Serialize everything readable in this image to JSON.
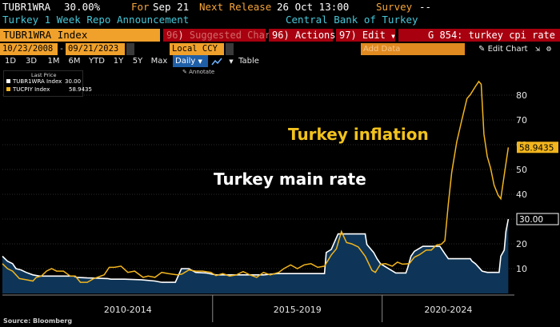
{
  "header": {
    "ticker": "TUBR1WRA",
    "value": "30.00%",
    "for_label": "For",
    "for_date": "Sep 21",
    "next_release_label": "Next Release",
    "next_release": "26 Oct 13:00",
    "survey_label": "Survey",
    "survey_value": "--",
    "description": "Turkey 1 Week Repo Announcement",
    "source_name": "Central Bank of Turkey"
  },
  "toolbar": {
    "security": "TUBR1WRA Index",
    "suggested_num": "96",
    "suggested": "Suggested Charts",
    "actions_num": "96)",
    "actions": "Actions",
    "edit_num": "97)",
    "edit": "Edit",
    "search": "G 854: turkey cpi rate"
  },
  "controls": {
    "start_date": "10/23/2008",
    "end_date": "09/21/2023",
    "currency": "Local CCY",
    "add_data": "Add Data",
    "edit_chart": "Edit Chart",
    "periods": [
      "1D",
      "3D",
      "1M",
      "6M",
      "YTD",
      "1Y",
      "5Y",
      "Max"
    ],
    "frequency": "Daily",
    "table": "Table",
    "annotate": "Annotate"
  },
  "legend": {
    "header": "Last Price",
    "items": [
      {
        "name": "TUBR1WRA Index",
        "value": "30.00",
        "color": "#ffffff"
      },
      {
        "name": "TUCPIY Index",
        "value": "58.9435",
        "color": "#f2b51d"
      }
    ]
  },
  "chart_data": {
    "type": "line",
    "x_unit": "year",
    "xlim": [
      2008.8,
      2023.9
    ],
    "ylim": [
      0,
      90
    ],
    "y_ticks": [
      10,
      20,
      30,
      40,
      50,
      60,
      70,
      80
    ],
    "x_groups": [
      {
        "label": "2010-2014",
        "from": 2010,
        "to": 2015
      },
      {
        "label": "2015-2019",
        "from": 2015,
        "to": 2020
      },
      {
        "label": "2020-2024",
        "from": 2020,
        "to": 2024
      }
    ],
    "annotations": [
      {
        "text": "Turkey inflation",
        "color": "#f2c21d"
      },
      {
        "text": "Turkey main rate",
        "color": "#ffffff"
      }
    ],
    "last_labels": [
      {
        "text": "58.9435",
        "value": 58.9435,
        "style": "yellow"
      },
      {
        "text": "30.00",
        "value": 30.0,
        "style": "black"
      }
    ],
    "series": [
      {
        "name": "TUBR1WRA Index",
        "color": "#ffffff",
        "fill": "#0e3557",
        "points": [
          [
            2008.8,
            15.0
          ],
          [
            2008.95,
            13.0
          ],
          [
            2009.1,
            12.0
          ],
          [
            2009.2,
            10.0
          ],
          [
            2009.35,
            9.5
          ],
          [
            2009.5,
            8.5
          ],
          [
            2009.7,
            7.5
          ],
          [
            2009.9,
            7.0
          ],
          [
            2010.3,
            7.0
          ],
          [
            2010.4,
            7.0
          ],
          [
            2010.5,
            7.0
          ],
          [
            2010.9,
            7.0
          ],
          [
            2011.0,
            6.5
          ],
          [
            2011.3,
            6.25
          ],
          [
            2011.9,
            6.0
          ],
          [
            2012.0,
            5.75
          ],
          [
            2012.4,
            5.75
          ],
          [
            2012.9,
            5.5
          ],
          [
            2013.3,
            5.0
          ],
          [
            2013.5,
            4.5
          ],
          [
            2013.9,
            4.5
          ],
          [
            2014.08,
            10.0
          ],
          [
            2014.3,
            10.0
          ],
          [
            2014.5,
            8.5
          ],
          [
            2014.8,
            8.25
          ],
          [
            2015.1,
            7.5
          ],
          [
            2015.9,
            7.5
          ],
          [
            2016.1,
            7.5
          ],
          [
            2016.5,
            7.5
          ],
          [
            2016.9,
            8.0
          ],
          [
            2017.6,
            8.0
          ],
          [
            2017.9,
            8.0
          ],
          [
            2018.3,
            8.0
          ],
          [
            2018.35,
            16.5
          ],
          [
            2018.5,
            17.75
          ],
          [
            2018.7,
            24.0
          ],
          [
            2019.0,
            24.0
          ],
          [
            2019.5,
            24.0
          ],
          [
            2019.55,
            19.75
          ],
          [
            2019.75,
            16.5
          ],
          [
            2019.85,
            14.0
          ],
          [
            2019.95,
            12.0
          ],
          [
            2020.1,
            10.75
          ],
          [
            2020.4,
            8.25
          ],
          [
            2020.6,
            8.25
          ],
          [
            2020.7,
            8.25
          ],
          [
            2020.75,
            10.25
          ],
          [
            2020.85,
            15.0
          ],
          [
            2020.95,
            17.0
          ],
          [
            2021.2,
            19.0
          ],
          [
            2021.25,
            19.0
          ],
          [
            2021.7,
            19.0
          ],
          [
            2021.75,
            18.0
          ],
          [
            2021.85,
            16.0
          ],
          [
            2021.95,
            14.0
          ],
          [
            2022.3,
            14.0
          ],
          [
            2022.6,
            14.0
          ],
          [
            2022.65,
            13.0
          ],
          [
            2022.75,
            12.0
          ],
          [
            2022.85,
            10.5
          ],
          [
            2022.95,
            9.0
          ],
          [
            2023.1,
            8.5
          ],
          [
            2023.45,
            8.5
          ],
          [
            2023.5,
            15.0
          ],
          [
            2023.6,
            17.5
          ],
          [
            2023.65,
            25.0
          ],
          [
            2023.72,
            30.0
          ]
        ]
      },
      {
        "name": "TUCPIY Index",
        "color": "#f2b51d",
        "points": [
          [
            2008.8,
            12.0
          ],
          [
            2008.95,
            10.0
          ],
          [
            2009.1,
            9.0
          ],
          [
            2009.3,
            6.0
          ],
          [
            2009.5,
            5.5
          ],
          [
            2009.7,
            5.0
          ],
          [
            2009.8,
            6.5
          ],
          [
            2009.95,
            7.0
          ],
          [
            2010.1,
            9.0
          ],
          [
            2010.25,
            10.0
          ],
          [
            2010.4,
            9.0
          ],
          [
            2010.6,
            9.0
          ],
          [
            2010.8,
            7.0
          ],
          [
            2010.95,
            7.0
          ],
          [
            2011.1,
            4.5
          ],
          [
            2011.3,
            4.5
          ],
          [
            2011.5,
            6.0
          ],
          [
            2011.8,
            7.5
          ],
          [
            2011.95,
            10.5
          ],
          [
            2012.1,
            10.5
          ],
          [
            2012.3,
            11.0
          ],
          [
            2012.5,
            8.5
          ],
          [
            2012.7,
            9.0
          ],
          [
            2012.95,
            6.5
          ],
          [
            2013.1,
            7.0
          ],
          [
            2013.3,
            6.5
          ],
          [
            2013.5,
            8.5
          ],
          [
            2013.7,
            8.0
          ],
          [
            2013.95,
            7.5
          ],
          [
            2014.1,
            7.8
          ],
          [
            2014.3,
            9.5
          ],
          [
            2014.5,
            9.0
          ],
          [
            2014.7,
            9.0
          ],
          [
            2014.95,
            8.5
          ],
          [
            2015.1,
            7.2
          ],
          [
            2015.3,
            8.0
          ],
          [
            2015.5,
            7.0
          ],
          [
            2015.7,
            7.5
          ],
          [
            2015.9,
            8.8
          ],
          [
            2016.1,
            7.5
          ],
          [
            2016.3,
            6.5
          ],
          [
            2016.5,
            8.5
          ],
          [
            2016.7,
            7.5
          ],
          [
            2016.95,
            8.5
          ],
          [
            2017.1,
            10.0
          ],
          [
            2017.3,
            11.5
          ],
          [
            2017.5,
            10.0
          ],
          [
            2017.7,
            11.5
          ],
          [
            2017.9,
            12.0
          ],
          [
            2018.1,
            10.5
          ],
          [
            2018.3,
            11.0
          ],
          [
            2018.5,
            15.5
          ],
          [
            2018.65,
            18.0
          ],
          [
            2018.8,
            25.0
          ],
          [
            2018.95,
            20.5
          ],
          [
            2019.1,
            20.0
          ],
          [
            2019.3,
            18.7
          ],
          [
            2019.5,
            15.0
          ],
          [
            2019.7,
            9.3
          ],
          [
            2019.8,
            8.5
          ],
          [
            2019.95,
            11.8
          ],
          [
            2020.1,
            12.0
          ],
          [
            2020.3,
            11.0
          ],
          [
            2020.45,
            12.6
          ],
          [
            2020.6,
            11.8
          ],
          [
            2020.8,
            12.0
          ],
          [
            2020.95,
            14.6
          ],
          [
            2021.1,
            15.6
          ],
          [
            2021.3,
            17.5
          ],
          [
            2021.45,
            17.5
          ],
          [
            2021.6,
            19.5
          ],
          [
            2021.75,
            19.9
          ],
          [
            2021.85,
            21.3
          ],
          [
            2021.95,
            36.1
          ],
          [
            2022.05,
            48.7
          ],
          [
            2022.2,
            61.1
          ],
          [
            2022.35,
            70.0
          ],
          [
            2022.5,
            78.6
          ],
          [
            2022.6,
            80.2
          ],
          [
            2022.75,
            83.5
          ],
          [
            2022.85,
            85.5
          ],
          [
            2022.92,
            84.4
          ],
          [
            2023.0,
            64.3
          ],
          [
            2023.1,
            55.2
          ],
          [
            2023.2,
            50.5
          ],
          [
            2023.3,
            43.7
          ],
          [
            2023.42,
            39.6
          ],
          [
            2023.5,
            38.2
          ],
          [
            2023.6,
            47.8
          ],
          [
            2023.72,
            58.9
          ]
        ]
      }
    ]
  }
}
